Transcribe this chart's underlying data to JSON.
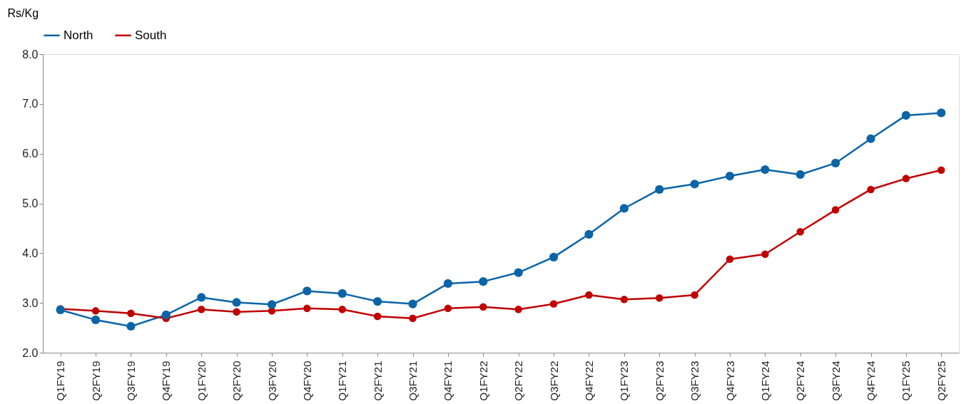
{
  "chart_data": {
    "type": "line",
    "ylabel": "Rs/Kg",
    "categories": [
      "Q1FY19",
      "Q2FY19",
      "Q3FY19",
      "Q4FY19",
      "Q1FY20",
      "Q2FY20",
      "Q3FY20",
      "Q4FY20",
      "Q1FY21",
      "Q2FY21",
      "Q3FY21",
      "Q4FY21",
      "Q1FY22",
      "Q2FY22",
      "Q3FY22",
      "Q4FY22",
      "Q1FY23",
      "Q2FY23",
      "Q3FY23",
      "Q4FY23",
      "Q1FY24",
      "Q2FY24",
      "Q3FY24",
      "Q4FY24",
      "Q1FY25",
      "Q2FY25"
    ],
    "series": [
      {
        "name": "North",
        "color": "#0b64a8",
        "values": [
          2.86,
          2.66,
          2.53,
          2.76,
          3.11,
          3.01,
          2.97,
          3.24,
          3.19,
          3.03,
          2.98,
          3.39,
          3.43,
          3.61,
          3.92,
          4.38,
          4.9,
          5.28,
          5.39,
          5.55,
          5.68,
          5.58,
          5.81,
          6.3,
          6.77,
          6.82
        ]
      },
      {
        "name": "South",
        "color": "#c00000",
        "values": [
          2.88,
          2.84,
          2.79,
          2.69,
          2.87,
          2.82,
          2.84,
          2.89,
          2.87,
          2.73,
          2.69,
          2.89,
          2.92,
          2.87,
          2.98,
          3.16,
          3.07,
          3.1,
          3.16,
          3.88,
          3.98,
          4.43,
          4.87,
          5.28,
          5.5,
          5.67
        ]
      }
    ],
    "ylim": [
      2.0,
      8.0
    ],
    "yticks": [
      {
        "value": 2,
        "label": "2.0"
      },
      {
        "value": 3,
        "label": "3.0"
      },
      {
        "value": 4,
        "label": "4.0"
      },
      {
        "value": 5,
        "label": "5.0"
      },
      {
        "value": 6,
        "label": "6.0"
      },
      {
        "value": 7,
        "label": "7.0"
      },
      {
        "value": 8,
        "label": "8.0"
      }
    ],
    "grid": false,
    "legend": "top",
    "marker": "circle",
    "line_style": "solid"
  }
}
